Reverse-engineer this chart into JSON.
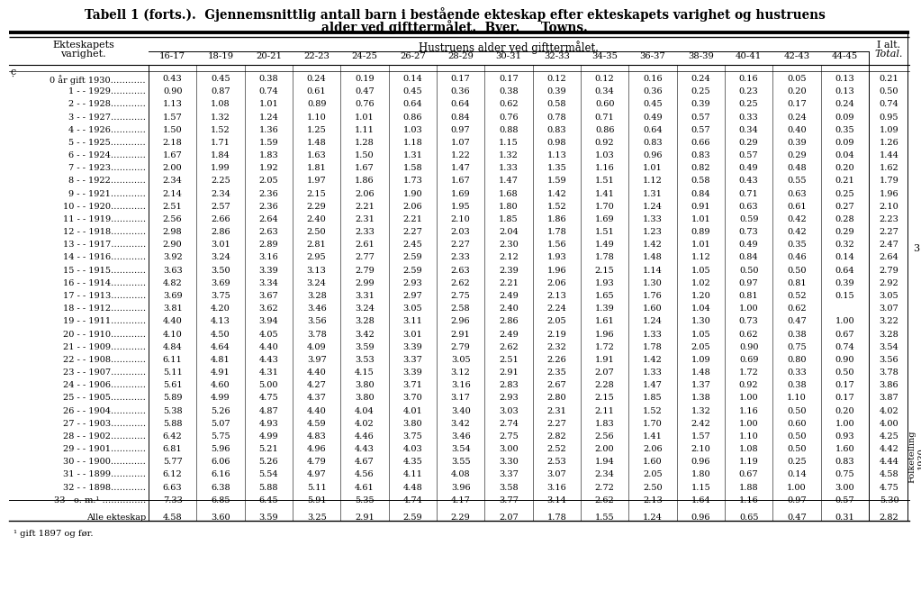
{
  "title_line1": "Tabell 1 (forts.).  Gjennemsnittlig antall barn i bestående ekteskap efter ekteskapets varighet og hustruens",
  "title_line2": "alder ved gifttermålet.  Byer.     Towns.",
  "col_header1": "Ekteskapets",
  "col_header2": "varighet.",
  "span_header": "Hustruens alder ved gifttermålet.",
  "total_header1": "I alt.",
  "total_header2": "Total.",
  "age_cols": [
    "16-17",
    "18-19",
    "20-21",
    "22-23",
    "24-25",
    "26-27",
    "28-29",
    "30-31",
    "32-33",
    "34-35",
    "36-37",
    "38-39",
    "40-41",
    "42-43",
    "44-45"
  ],
  "side_note": "ƴ",
  "footnote": "¹ gift 1897 og før.",
  "side_right": "Folketelling\n1930.",
  "rows": [
    {
      "label": "0 år gift 1930…………",
      "values": [
        0.43,
        0.45,
        0.38,
        0.24,
        0.19,
        0.14,
        0.17,
        0.17,
        0.12,
        0.12,
        0.16,
        0.24,
        0.16,
        0.05,
        0.13,
        0.21
      ]
    },
    {
      "label": "1 - - 1929…………",
      "values": [
        0.9,
        0.87,
        0.74,
        0.61,
        0.47,
        0.45,
        0.36,
        0.38,
        0.39,
        0.34,
        0.36,
        0.25,
        0.23,
        0.2,
        0.13,
        0.5
      ]
    },
    {
      "label": "2 - - 1928…………",
      "values": [
        1.13,
        1.08,
        1.01,
        0.89,
        0.76,
        0.64,
        0.64,
        0.62,
        0.58,
        0.6,
        0.45,
        0.39,
        0.25,
        0.17,
        0.24,
        0.74
      ]
    },
    {
      "label": "3 - - 1927…………",
      "values": [
        1.57,
        1.32,
        1.24,
        1.1,
        1.01,
        0.86,
        0.84,
        0.76,
        0.78,
        0.71,
        0.49,
        0.57,
        0.33,
        0.24,
        0.09,
        0.95
      ]
    },
    {
      "label": "4 - - 1926…………",
      "values": [
        1.5,
        1.52,
        1.36,
        1.25,
        1.11,
        1.03,
        0.97,
        0.88,
        0.83,
        0.86,
        0.64,
        0.57,
        0.34,
        0.4,
        0.35,
        1.09
      ]
    },
    {
      "label": "5 - - 1925…………",
      "values": [
        2.18,
        1.71,
        1.59,
        1.48,
        1.28,
        1.18,
        1.07,
        1.15,
        0.98,
        0.92,
        0.83,
        0.66,
        0.29,
        0.39,
        0.09,
        1.26
      ]
    },
    {
      "label": "6 - - 1924…………",
      "values": [
        1.67,
        1.84,
        1.83,
        1.63,
        1.5,
        1.31,
        1.22,
        1.32,
        1.13,
        1.03,
        0.96,
        0.83,
        0.57,
        0.29,
        0.04,
        1.44
      ]
    },
    {
      "label": "7 - - 1923…………",
      "values": [
        2.0,
        1.99,
        1.92,
        1.81,
        1.67,
        1.58,
        1.47,
        1.33,
        1.35,
        1.16,
        1.01,
        0.82,
        0.49,
        0.48,
        0.2,
        1.62
      ]
    },
    {
      "label": "8 - - 1922…………",
      "values": [
        2.34,
        2.25,
        2.05,
        1.97,
        1.86,
        1.73,
        1.67,
        1.47,
        1.59,
        1.51,
        1.12,
        0.58,
        0.43,
        0.55,
        0.21,
        1.79
      ]
    },
    {
      "label": "9 - - 1921…………",
      "values": [
        2.14,
        2.34,
        2.36,
        2.15,
        2.06,
        1.9,
        1.69,
        1.68,
        1.42,
        1.41,
        1.31,
        0.84,
        0.71,
        0.63,
        0.25,
        1.96
      ]
    },
    {
      "label": "10 - - 1920…………",
      "values": [
        2.51,
        2.57,
        2.36,
        2.29,
        2.21,
        2.06,
        1.95,
        1.8,
        1.52,
        1.7,
        1.24,
        0.91,
        0.63,
        0.61,
        0.27,
        2.1
      ]
    },
    {
      "label": "11 - - 1919…………",
      "values": [
        2.56,
        2.66,
        2.64,
        2.4,
        2.31,
        2.21,
        2.1,
        1.85,
        1.86,
        1.69,
        1.33,
        1.01,
        0.59,
        0.42,
        0.28,
        2.23
      ]
    },
    {
      "label": "12 - - 1918…………",
      "values": [
        2.98,
        2.86,
        2.63,
        2.5,
        2.33,
        2.27,
        2.03,
        2.04,
        1.78,
        1.51,
        1.23,
        0.89,
        0.73,
        0.42,
        0.29,
        2.27
      ]
    },
    {
      "label": "13 - - 1917…………",
      "values": [
        2.9,
        3.01,
        2.89,
        2.81,
        2.61,
        2.45,
        2.27,
        2.3,
        1.56,
        1.49,
        1.42,
        1.01,
        0.49,
        0.35,
        0.32,
        2.47
      ]
    },
    {
      "label": "14 - - 1916…………",
      "values": [
        3.92,
        3.24,
        3.16,
        2.95,
        2.77,
        2.59,
        2.33,
        2.12,
        1.93,
        1.78,
        1.48,
        1.12,
        0.84,
        0.46,
        0.14,
        2.64
      ]
    },
    {
      "label": "15 - - 1915…………",
      "values": [
        3.63,
        3.5,
        3.39,
        3.13,
        2.79,
        2.59,
        2.63,
        2.39,
        1.96,
        2.15,
        1.14,
        1.05,
        0.5,
        0.5,
        0.64,
        2.79
      ]
    },
    {
      "label": "16 - - 1914…………",
      "values": [
        4.82,
        3.69,
        3.34,
        3.24,
        2.99,
        2.93,
        2.62,
        2.21,
        2.06,
        1.93,
        1.3,
        1.02,
        0.97,
        0.81,
        0.39,
        2.92
      ]
    },
    {
      "label": "17 - - 1913…………",
      "values": [
        3.69,
        3.75,
        3.67,
        3.28,
        3.31,
        2.97,
        2.75,
        2.49,
        2.13,
        1.65,
        1.76,
        1.2,
        0.81,
        0.52,
        0.15,
        3.05
      ]
    },
    {
      "label": "18 - - 1912…………",
      "values": [
        3.81,
        4.2,
        3.62,
        3.46,
        3.24,
        3.05,
        2.58,
        2.4,
        2.24,
        1.39,
        1.6,
        1.04,
        1.0,
        0.62,
        null,
        3.07
      ]
    },
    {
      "label": "19 - - 1911…………",
      "values": [
        4.4,
        4.13,
        3.94,
        3.56,
        3.28,
        3.11,
        2.96,
        2.86,
        2.05,
        1.61,
        1.24,
        1.3,
        0.73,
        0.47,
        1.0,
        3.22
      ]
    },
    {
      "label": "20 - - 1910…………",
      "values": [
        4.1,
        4.5,
        4.05,
        3.78,
        3.42,
        3.01,
        2.91,
        2.49,
        2.19,
        1.96,
        1.33,
        1.05,
        0.62,
        0.38,
        0.67,
        3.28
      ]
    },
    {
      "label": "21 - - 1909…………",
      "values": [
        4.84,
        4.64,
        4.4,
        4.09,
        3.59,
        3.39,
        2.79,
        2.62,
        2.32,
        1.72,
        1.78,
        2.05,
        0.9,
        0.75,
        0.74,
        3.54
      ]
    },
    {
      "label": "22 - - 1908…………",
      "values": [
        6.11,
        4.81,
        4.43,
        3.97,
        3.53,
        3.37,
        3.05,
        2.51,
        2.26,
        1.91,
        1.42,
        1.09,
        0.69,
        0.8,
        0.9,
        3.56
      ]
    },
    {
      "label": "23 - - 1907…………",
      "values": [
        5.11,
        4.91,
        4.31,
        4.4,
        4.15,
        3.39,
        3.12,
        2.91,
        2.35,
        2.07,
        1.33,
        1.48,
        1.72,
        0.33,
        0.5,
        3.78
      ]
    },
    {
      "label": "24 - - 1906…………",
      "values": [
        5.61,
        4.6,
        5.0,
        4.27,
        3.8,
        3.71,
        3.16,
        2.83,
        2.67,
        2.28,
        1.47,
        1.37,
        0.92,
        0.38,
        0.17,
        3.86
      ]
    },
    {
      "label": "25 - - 1905…………",
      "values": [
        5.89,
        4.99,
        4.75,
        4.37,
        3.8,
        3.7,
        3.17,
        2.93,
        2.8,
        2.15,
        1.85,
        1.38,
        1.0,
        1.1,
        0.17,
        3.87
      ]
    },
    {
      "label": "26 - - 1904…………",
      "values": [
        5.38,
        5.26,
        4.87,
        4.4,
        4.04,
        4.01,
        3.4,
        3.03,
        2.31,
        2.11,
        1.52,
        1.32,
        1.16,
        0.5,
        0.2,
        4.02
      ]
    },
    {
      "label": "27 - - 1903…………",
      "values": [
        5.88,
        5.07,
        4.93,
        4.59,
        4.02,
        3.8,
        3.42,
        2.74,
        2.27,
        1.83,
        1.7,
        2.42,
        1.0,
        0.6,
        1.0,
        4.0
      ]
    },
    {
      "label": "28 - - 1902…………",
      "values": [
        6.42,
        5.75,
        4.99,
        4.83,
        4.46,
        3.75,
        3.46,
        2.75,
        2.82,
        2.56,
        1.41,
        1.57,
        1.1,
        0.5,
        0.93,
        4.25
      ]
    },
    {
      "label": "29 - - 1901…………",
      "values": [
        6.81,
        5.96,
        5.21,
        4.96,
        4.43,
        4.03,
        3.54,
        3.0,
        2.52,
        2.0,
        2.06,
        2.1,
        1.08,
        0.5,
        1.6,
        4.42
      ]
    },
    {
      "label": "30 - - 1900…………",
      "values": [
        5.77,
        6.06,
        5.26,
        4.79,
        4.67,
        4.35,
        3.55,
        3.3,
        2.53,
        1.94,
        1.6,
        0.96,
        1.19,
        0.25,
        0.83,
        4.44
      ]
    },
    {
      "label": "31 - - 1899…………",
      "values": [
        6.12,
        6.16,
        5.54,
        4.97,
        4.56,
        4.11,
        4.08,
        3.37,
        3.07,
        2.34,
        2.05,
        1.8,
        0.67,
        0.14,
        0.75,
        4.58
      ]
    },
    {
      "label": "32 - - 1898…………",
      "values": [
        6.63,
        6.38,
        5.88,
        5.11,
        4.61,
        4.48,
        3.96,
        3.58,
        3.16,
        2.72,
        2.5,
        1.15,
        1.88,
        1.0,
        3.0,
        4.75
      ]
    },
    {
      "label": "33 - o. m.¹ ……………",
      "values": [
        7.33,
        6.85,
        6.45,
        5.91,
        5.35,
        4.74,
        4.17,
        3.77,
        3.14,
        2.62,
        2.13,
        1.64,
        1.16,
        0.97,
        0.57,
        5.3
      ]
    },
    {
      "label": "Alle ekteskap",
      "values": [
        4.58,
        3.6,
        3.59,
        3.25,
        2.91,
        2.59,
        2.29,
        2.07,
        1.78,
        1.55,
        1.24,
        0.96,
        0.65,
        0.47,
        0.31,
        2.82
      ]
    }
  ]
}
